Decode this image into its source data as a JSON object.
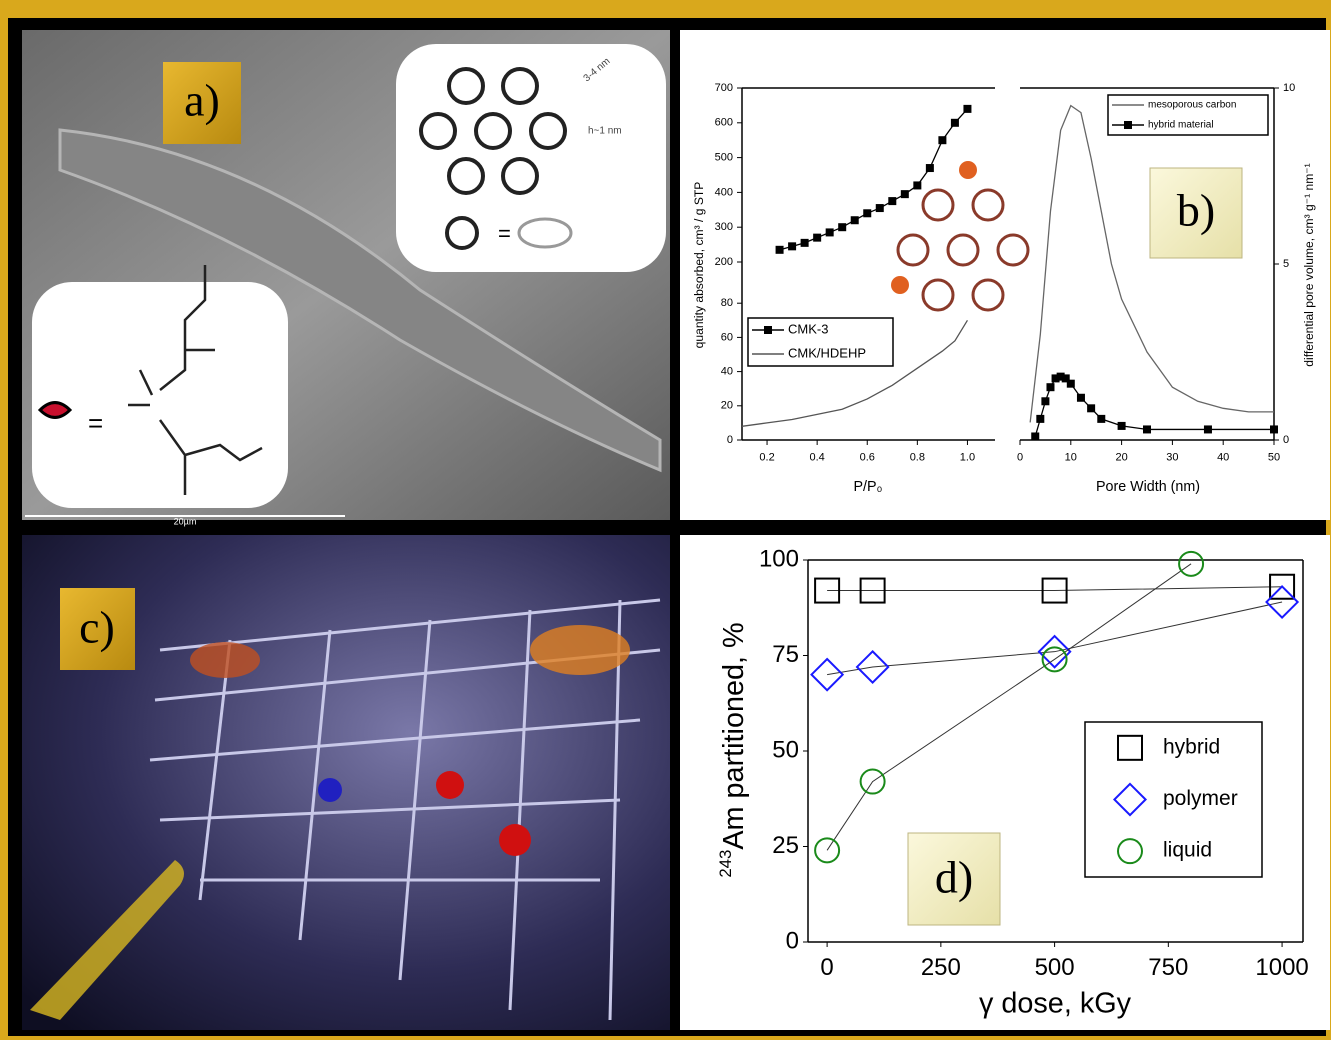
{
  "panels": [
    {
      "label": "a)",
      "inset_labels": [
        "3-4 nm",
        "h~1 nm"
      ],
      "scale_label": "20µm"
    },
    {
      "label": "b)"
    },
    {
      "label": "c)"
    },
    {
      "label": "d)"
    }
  ],
  "chart_data": [
    {
      "type": "line",
      "x_label": "P/P₀",
      "y_label": "quantity absorbed, cm³ / g STP",
      "xlim": [
        0.1,
        1.11
      ],
      "xticks": [
        0.2,
        0.4,
        0.6,
        0.8,
        {
          "value": 1,
          "label": "1.0"
        }
      ],
      "ylim": [
        0,
        700
      ],
      "ybreak": [
        100,
        200
      ],
      "yticks": [
        0,
        20,
        40,
        60,
        80,
        200,
        300,
        400,
        500,
        600,
        700
      ],
      "series": [
        {
          "name": "CMK-3",
          "color": "#000000",
          "marker": "square",
          "x": [
            0.25,
            0.3,
            0.35,
            0.4,
            0.45,
            0.5,
            0.55,
            0.6,
            0.65,
            0.7,
            0.75,
            0.8,
            0.85,
            0.9,
            0.95,
            1
          ],
          "values": [
            235,
            245,
            255,
            270,
            285,
            300,
            320,
            340,
            355,
            375,
            395,
            420,
            470,
            550,
            600,
            640
          ]
        },
        {
          "name": "CMK/HDEHP",
          "color": "#555555",
          "marker": "none",
          "x": [
            0.1,
            0.2,
            0.3,
            0.4,
            0.5,
            0.6,
            0.7,
            0.8,
            0.9,
            0.95,
            1
          ],
          "values": [
            8,
            10,
            12,
            15,
            18,
            24,
            32,
            42,
            52,
            58,
            70
          ]
        }
      ]
    },
    {
      "type": "line",
      "x_label": "Pore Width (nm)",
      "y_label": "differential pore volume, cm³ g⁻¹ nm⁻¹",
      "xlim": [
        0,
        50
      ],
      "xticks": [
        0,
        10,
        20,
        30,
        40,
        50
      ],
      "ylim": [
        0,
        10
      ],
      "yticks": [
        0,
        5,
        10
      ],
      "y_side": "right",
      "series": [
        {
          "name": "mesoporous carbon",
          "color": "#666666",
          "marker": "none",
          "x": [
            2,
            4,
            6,
            8,
            10,
            12,
            14,
            16,
            18,
            20,
            25,
            30,
            35,
            40,
            45,
            50
          ],
          "values": [
            0.5,
            3,
            6.5,
            8.8,
            9.5,
            9.3,
            8,
            6.5,
            5,
            4,
            2.5,
            1.5,
            1.1,
            0.9,
            0.8,
            0.8
          ]
        },
        {
          "name": "hybrid material",
          "color": "#000000",
          "marker": "square",
          "x": [
            3,
            4,
            5,
            6,
            7,
            8,
            9,
            10,
            12,
            14,
            16,
            20,
            25,
            37,
            50
          ],
          "values": [
            0.1,
            0.6,
            1.1,
            1.5,
            1.75,
            1.8,
            1.75,
            1.6,
            1.2,
            0.9,
            0.6,
            0.4,
            0.3,
            0.3,
            0.3
          ]
        }
      ]
    },
    {
      "type": "scatter",
      "x_label": "γ dose, kGy",
      "y_label_sup": "243",
      "y_label": "Am partitioned, %",
      "xlim": [
        -42,
        1046
      ],
      "xticks": [
        0,
        250,
        500,
        750,
        1000
      ],
      "ylim": [
        0,
        100
      ],
      "yticks": [
        0,
        25,
        50,
        75,
        100
      ],
      "series": [
        {
          "name": "hybrid",
          "color": "#000000",
          "marker": "square",
          "x": [
            0,
            100,
            500,
            1000
          ],
          "values": [
            92,
            92,
            92,
            93
          ]
        },
        {
          "name": "polymer",
          "color": "#1a1aff",
          "marker": "diamond",
          "x": [
            0,
            100,
            500,
            1000
          ],
          "values": [
            70,
            72,
            76,
            89
          ]
        },
        {
          "name": "liquid",
          "color": "#1a8a1a",
          "marker": "circle",
          "x": [
            0,
            100,
            500,
            800
          ],
          "values": [
            24,
            42,
            74,
            99
          ]
        }
      ]
    }
  ]
}
